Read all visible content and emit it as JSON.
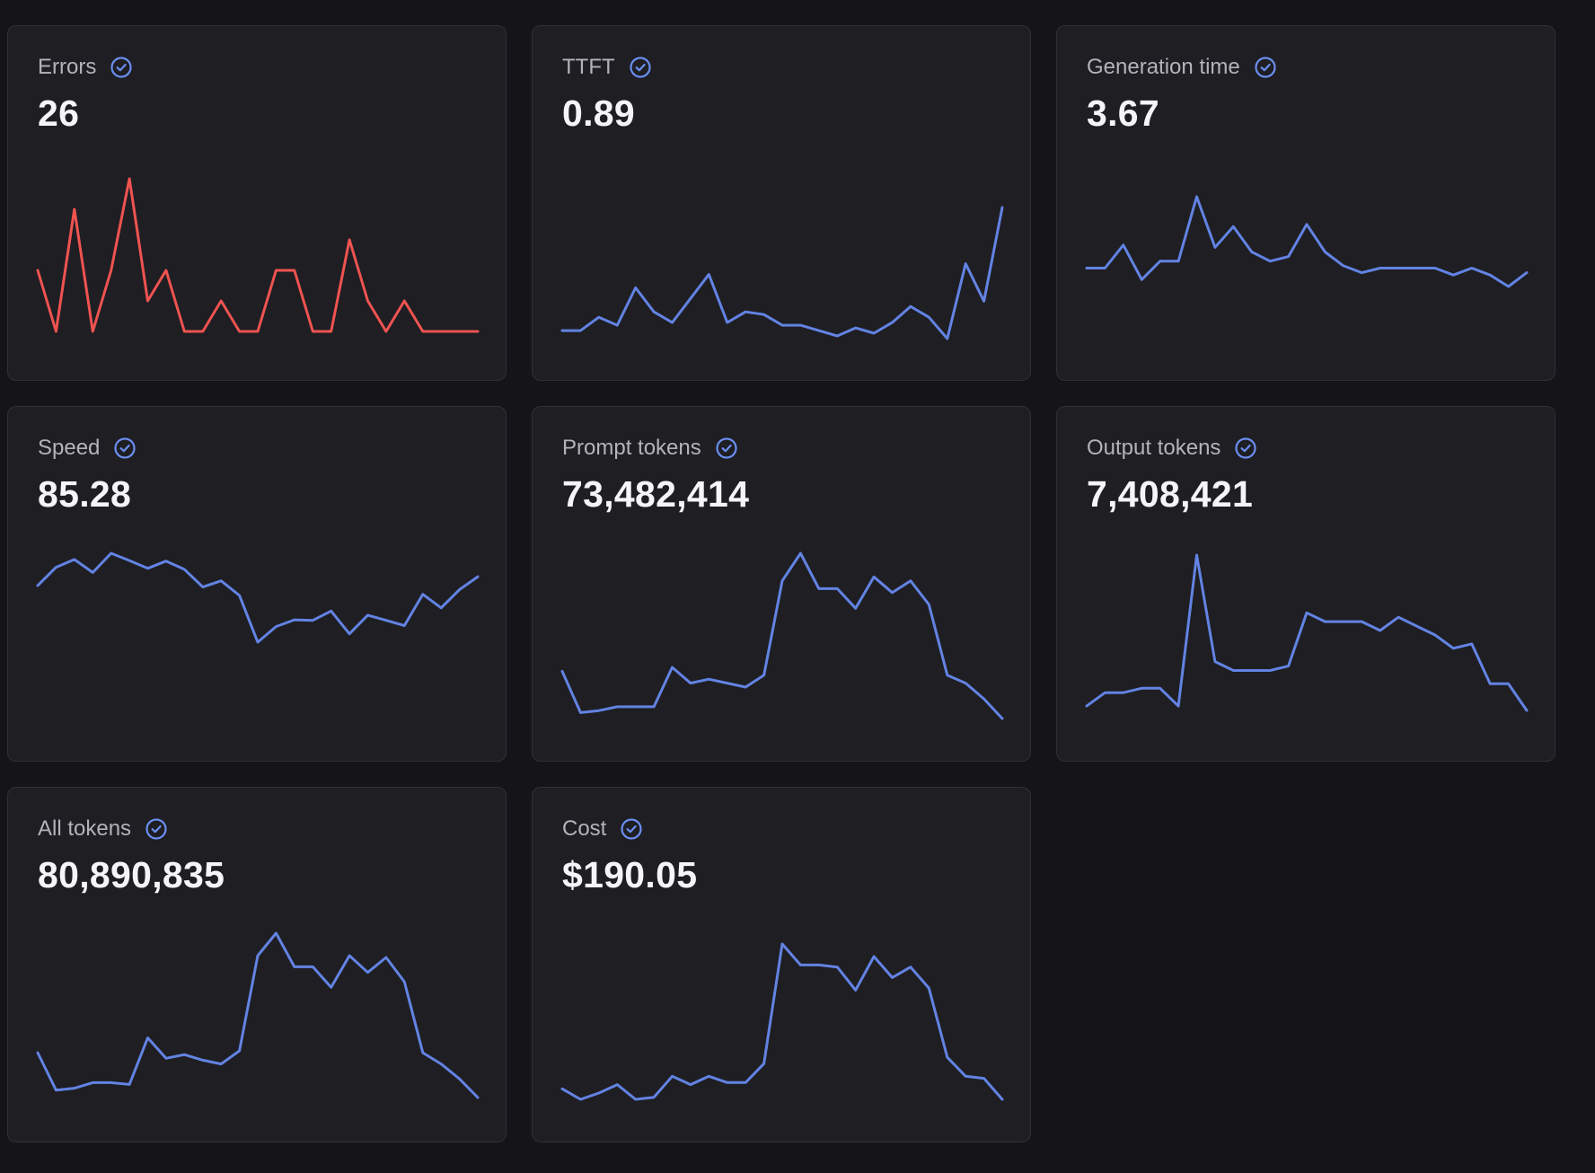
{
  "colors": {
    "background": "#141419",
    "card": "#1e1e23",
    "line": "#6383e3",
    "error_line": "#ef5350",
    "check": "#6b8ef0"
  },
  "cards": [
    {
      "title": "Errors",
      "value": "26",
      "icon": "check-circle-icon",
      "color": "error_line",
      "chart_data": {
        "type": "line",
        "values": [
          2,
          0,
          4,
          0,
          2,
          5,
          1,
          2,
          0,
          0,
          1,
          0,
          0,
          2,
          2,
          0,
          0,
          3,
          1,
          0,
          1,
          0,
          0,
          0,
          0
        ]
      }
    },
    {
      "title": "TTFT",
      "value": "0.89",
      "icon": "check-circle-icon",
      "color": "line",
      "chart_data": {
        "type": "line",
        "values": [
          0.3,
          0.3,
          0.8,
          0.5,
          1.9,
          1.0,
          0.6,
          1.5,
          2.4,
          0.6,
          1.0,
          0.9,
          0.5,
          0.5,
          0.3,
          0.1,
          0.4,
          0.2,
          0.6,
          1.2,
          0.8,
          0.0,
          2.8,
          1.4,
          4.9
        ]
      }
    },
    {
      "title": "Generation time",
      "value": "3.67",
      "icon": "check-circle-icon",
      "color": "line",
      "chart_data": {
        "type": "line",
        "values": [
          3.3,
          3.3,
          4.3,
          2.8,
          3.6,
          3.6,
          6.4,
          4.2,
          5.1,
          4.0,
          3.6,
          3.8,
          5.2,
          4.0,
          3.4,
          3.1,
          3.3,
          3.3,
          3.3,
          3.3,
          3.0,
          3.3,
          3.0,
          2.5,
          3.1
        ]
      }
    },
    {
      "title": "Speed",
      "value": "85.28",
      "icon": "check-circle-icon",
      "color": "line",
      "chart_data": {
        "type": "line",
        "values": [
          90.0,
          93.5,
          95.0,
          92.5,
          96.2,
          94.8,
          93.3,
          94.7,
          93.1,
          89.7,
          90.9,
          88.1,
          79.1,
          82.1,
          83.4,
          83.3,
          85.1,
          80.7,
          84.3,
          83.3,
          82.3,
          88.3,
          85.7,
          89.2,
          91.7
        ]
      }
    },
    {
      "title": "Prompt tokens",
      "value": "73,482,414",
      "icon": "check-circle-icon",
      "color": "line",
      "chart_data": {
        "type": "line",
        "values": [
          1.2,
          0.15,
          0.2,
          0.3,
          0.3,
          0.3,
          1.3,
          0.9,
          1.0,
          0.9,
          0.8,
          1.1,
          3.5,
          4.2,
          3.3,
          3.3,
          2.8,
          3.6,
          3.2,
          3.5,
          2.9,
          1.1,
          0.9,
          0.5,
          0.0
        ]
      }
    },
    {
      "title": "Output tokens",
      "value": "7,408,421",
      "icon": "check-circle-icon",
      "color": "line",
      "chart_data": {
        "type": "line",
        "values": [
          0.1,
          0.4,
          0.4,
          0.5,
          0.5,
          0.1,
          3.5,
          1.1,
          0.9,
          0.9,
          0.9,
          1.0,
          2.2,
          2.0,
          2.0,
          2.0,
          1.8,
          2.1,
          1.9,
          1.7,
          1.4,
          1.5,
          0.6,
          0.6,
          0.0
        ]
      }
    },
    {
      "title": "All tokens",
      "value": "80,890,835",
      "icon": "check-circle-icon",
      "color": "line",
      "chart_data": {
        "type": "line",
        "values": [
          1.2,
          0.2,
          0.25,
          0.4,
          0.4,
          0.35,
          1.6,
          1.05,
          1.15,
          1.0,
          0.9,
          1.25,
          3.8,
          4.4,
          3.5,
          3.5,
          2.95,
          3.8,
          3.35,
          3.75,
          3.1,
          1.2,
          0.9,
          0.5,
          0.0
        ]
      }
    },
    {
      "title": "Cost",
      "value": "$190.05",
      "icon": "check-circle-icon",
      "color": "line",
      "chart_data": {
        "type": "line",
        "values": [
          0.25,
          0.0,
          0.15,
          0.35,
          0.0,
          0.05,
          0.55,
          0.35,
          0.55,
          0.4,
          0.4,
          0.85,
          3.7,
          3.2,
          3.2,
          3.15,
          2.6,
          3.4,
          2.9,
          3.15,
          2.65,
          1.0,
          0.55,
          0.5,
          0.0
        ]
      }
    }
  ]
}
